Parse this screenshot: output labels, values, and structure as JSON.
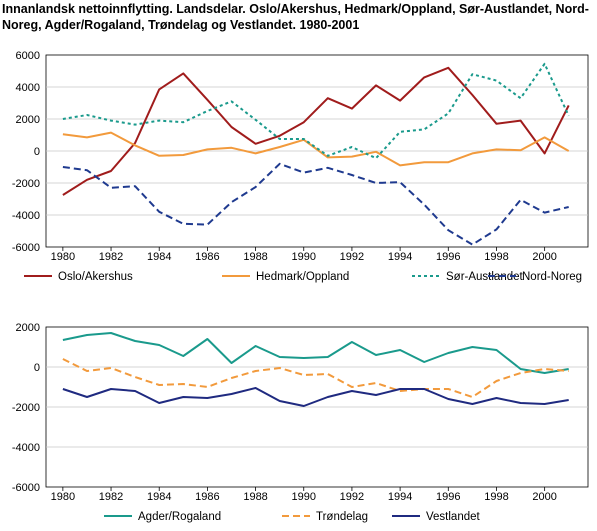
{
  "title": "Innanlandsk nettoinnflytting. Landsdelar. Oslo/Akershus, Hedmark/Oppland, Sør-Austlandet, Nord-Noreg, Agder/Rogaland, Trøndelag og Vestlandet. 1980-2001",
  "chart_data": [
    {
      "type": "line",
      "x": [
        1980,
        1981,
        1982,
        1983,
        1984,
        1985,
        1986,
        1987,
        1988,
        1989,
        1990,
        1991,
        1992,
        1993,
        1994,
        1995,
        1996,
        1997,
        1998,
        1999,
        2000,
        2001
      ],
      "xticks": [
        1980,
        1982,
        1984,
        1986,
        1988,
        1990,
        1992,
        1994,
        1996,
        1998,
        2000
      ],
      "ylim": [
        -6000,
        6000
      ],
      "yticks": [
        -6000,
        -4000,
        -2000,
        0,
        2000,
        4000,
        6000
      ],
      "grid": true,
      "legend_position": "bottom",
      "series": [
        {
          "name": "Oslo/Akershus",
          "color": "#a01c1c",
          "dash": "solid",
          "values": [
            -2750,
            -1800,
            -1250,
            500,
            3850,
            4850,
            3200,
            1500,
            450,
            950,
            1800,
            3300,
            2650,
            4100,
            3150,
            4600,
            5200,
            3500,
            1700,
            1900,
            -150,
            2850
          ]
        },
        {
          "name": "Hedmark/Oppland",
          "color": "#f29a3c",
          "dash": "solid",
          "values": [
            1050,
            850,
            1150,
            350,
            -300,
            -250,
            100,
            200,
            -150,
            250,
            700,
            -400,
            -350,
            -50,
            -900,
            -700,
            -700,
            -150,
            100,
            50,
            850,
            0
          ]
        },
        {
          "name": "Sør-Austlandet",
          "color": "#1a9a8c",
          "dash": "dotted",
          "values": [
            2000,
            2250,
            1900,
            1650,
            1900,
            1800,
            2500,
            3100,
            1950,
            750,
            750,
            -300,
            250,
            -450,
            1200,
            1350,
            2350,
            4800,
            4400,
            3300,
            5450,
            2200
          ]
        },
        {
          "name": "Nord-Noreg",
          "color": "#1f3a8f",
          "dash": "dashed",
          "values": [
            -1000,
            -1200,
            -2300,
            -2200,
            -3800,
            -4550,
            -4600,
            -3200,
            -2250,
            -800,
            -1350,
            -1050,
            -1500,
            -2000,
            -1950,
            -3350,
            -4950,
            -5850,
            -4900,
            -3050,
            -3850,
            -3500
          ]
        }
      ]
    },
    {
      "type": "line",
      "x": [
        1980,
        1981,
        1982,
        1983,
        1984,
        1985,
        1986,
        1987,
        1988,
        1989,
        1990,
        1991,
        1992,
        1993,
        1994,
        1995,
        1996,
        1997,
        1998,
        1999,
        2000,
        2001
      ],
      "xticks": [
        1980,
        1982,
        1984,
        1986,
        1988,
        1990,
        1992,
        1994,
        1996,
        1998,
        2000
      ],
      "ylim": [
        -6000,
        2000
      ],
      "yticks": [
        -6000,
        -4000,
        -2000,
        0,
        2000
      ],
      "grid": true,
      "legend_position": "bottom",
      "series": [
        {
          "name": "Agder/Rogaland",
          "color": "#1a9a8c",
          "dash": "solid",
          "values": [
            1350,
            1600,
            1700,
            1300,
            1100,
            550,
            1400,
            200,
            1050,
            500,
            450,
            500,
            1250,
            600,
            850,
            250,
            700,
            1000,
            850,
            -100,
            -300,
            -100
          ]
        },
        {
          "name": "Trøndelag",
          "color": "#f29a3c",
          "dash": "dashed",
          "values": [
            400,
            -200,
            -50,
            -500,
            -900,
            -850,
            -1000,
            -550,
            -200,
            -50,
            -400,
            -350,
            -1000,
            -800,
            -1200,
            -1100,
            -1100,
            -1500,
            -700,
            -300,
            -100,
            -200
          ]
        },
        {
          "name": "Vestlandet",
          "color": "#1f2a80",
          "dash": "solid",
          "values": [
            -1100,
            -1500,
            -1100,
            -1200,
            -1800,
            -1500,
            -1550,
            -1350,
            -1050,
            -1700,
            -1950,
            -1500,
            -1200,
            -1400,
            -1100,
            -1100,
            -1600,
            -1850,
            -1550,
            -1800,
            -1850,
            -1650
          ]
        }
      ]
    }
  ]
}
